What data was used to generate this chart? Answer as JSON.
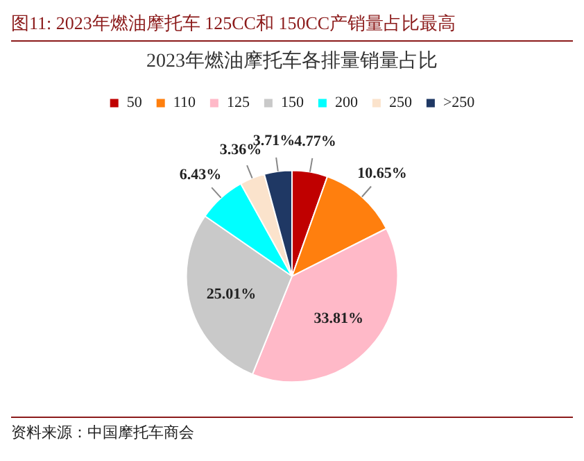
{
  "chart_data": {
    "type": "pie",
    "title": "图11:   2023年燃油摩托车 125CC和 150CC产销量占比最高",
    "subtitle": "2023年燃油摩托车各排量销量占比",
    "categories": [
      "50",
      "110",
      "125",
      "150",
      "200",
      "250",
      ">250"
    ],
    "values": [
      4.77,
      10.65,
      33.81,
      25.01,
      6.43,
      3.36,
      3.71
    ],
    "value_labels": [
      "4.77%",
      "10.65%",
      "33.81%",
      "25.01%",
      "6.43%",
      "3.36%",
      "3.71%"
    ],
    "colors": [
      "#c00000",
      "#ff7f0e",
      "#ffb9c8",
      "#c9c9c9",
      "#00ffff",
      "#fbe3cc",
      "#1f3864"
    ],
    "legend": "top",
    "annotations": [
      "资料来源：中国摩托车商会"
    ]
  }
}
